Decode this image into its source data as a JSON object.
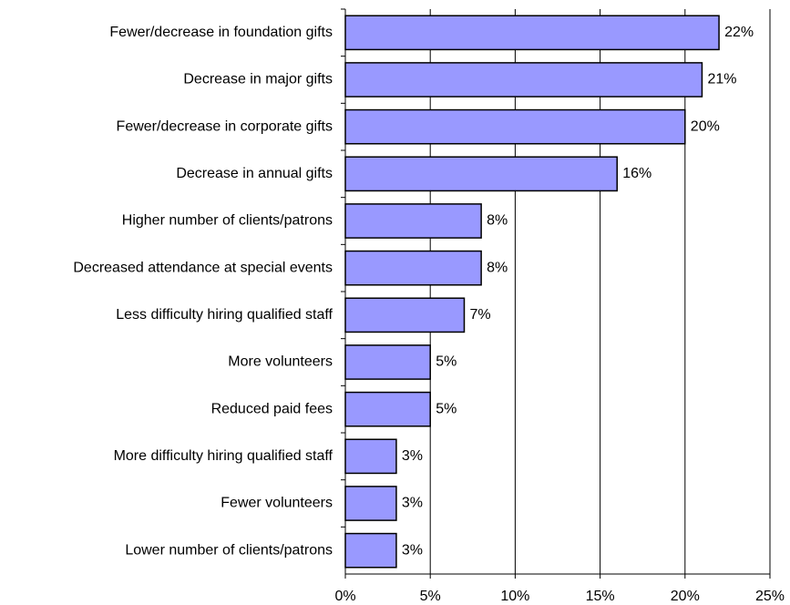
{
  "chart_data": {
    "type": "bar",
    "orientation": "horizontal",
    "categories": [
      "Fewer/decrease in foundation gifts",
      "Decrease in major gifts",
      "Fewer/decrease in corporate gifts",
      "Decrease in annual gifts",
      "Higher number of clients/patrons",
      "Decreased attendance at special events",
      "Less difficulty hiring qualified staff",
      "More volunteers",
      "Reduced paid fees",
      "More difficulty hiring qualified staff",
      "Fewer volunteers",
      "Lower number of clients/patrons"
    ],
    "values": [
      22,
      21,
      20,
      16,
      8,
      8,
      7,
      5,
      5,
      3,
      3,
      3
    ],
    "value_labels": [
      "22%",
      "21%",
      "20%",
      "16%",
      "8%",
      "8%",
      "7%",
      "5%",
      "5%",
      "3%",
      "3%",
      "3%"
    ],
    "color": "#9999ff",
    "xlim": [
      0,
      25
    ],
    "xticks": [
      {
        "value": 0,
        "label": "0%"
      },
      {
        "value": 5,
        "label": "5%"
      },
      {
        "value": 10,
        "label": "10%"
      },
      {
        "value": 15,
        "label": "15%"
      },
      {
        "value": 20,
        "label": "20%"
      },
      {
        "value": 25,
        "label": "25%"
      }
    ],
    "grid": true
  }
}
